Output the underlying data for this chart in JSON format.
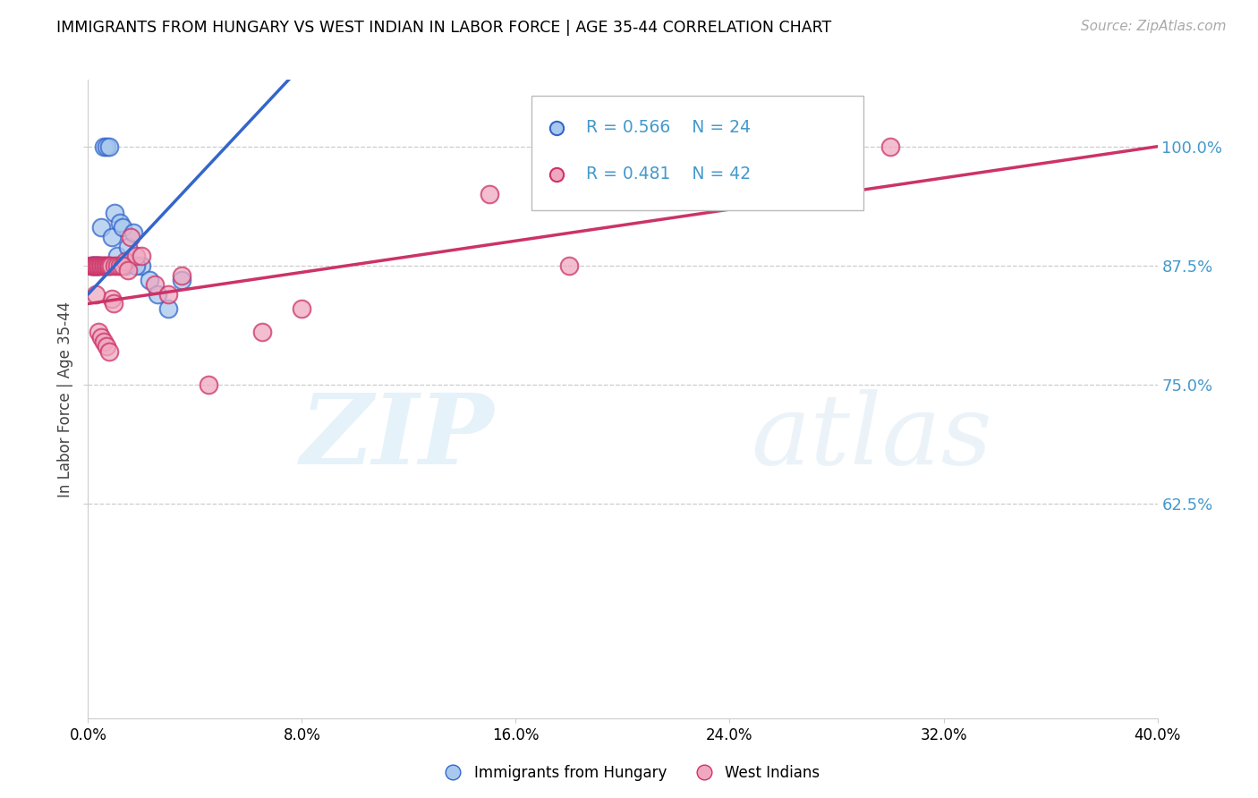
{
  "title": "IMMIGRANTS FROM HUNGARY VS WEST INDIAN IN LABOR FORCE | AGE 35-44 CORRELATION CHART",
  "source": "Source: ZipAtlas.com",
  "ylabel": "In Labor Force | Age 35-44",
  "R_hungary": 0.566,
  "N_hungary": 24,
  "R_westindian": 0.481,
  "N_westindian": 42,
  "legend_labels": [
    "Immigrants from Hungary",
    "West Indians"
  ],
  "hungary_color": "#a8c8ee",
  "hungary_line_color": "#3366cc",
  "westindian_color": "#f0a8c0",
  "westindian_line_color": "#cc3366",
  "axis_tick_color": "#4499cc",
  "hungary_x": [
    0.15,
    0.2,
    0.25,
    0.3,
    0.35,
    0.4,
    0.5,
    0.6,
    0.7,
    0.8,
    0.9,
    1.0,
    1.1,
    1.2,
    1.3,
    1.5,
    1.7,
    2.0,
    2.3,
    2.6,
    3.0,
    3.5,
    1.4,
    1.8
  ],
  "hungary_y": [
    87.5,
    87.5,
    87.5,
    87.5,
    87.5,
    87.5,
    91.5,
    100.0,
    100.0,
    100.0,
    90.5,
    93.0,
    88.5,
    92.0,
    91.5,
    89.5,
    91.0,
    87.5,
    86.0,
    84.5,
    83.0,
    86.0,
    87.5,
    87.5
  ],
  "westindian_x": [
    0.1,
    0.15,
    0.2,
    0.25,
    0.3,
    0.35,
    0.4,
    0.45,
    0.5,
    0.55,
    0.6,
    0.65,
    0.7,
    0.75,
    0.8,
    0.85,
    0.9,
    0.95,
    1.0,
    1.1,
    1.2,
    1.4,
    1.6,
    1.8,
    2.0,
    2.5,
    3.0,
    3.5,
    1.3,
    1.5,
    0.3,
    0.4,
    0.5,
    0.6,
    0.7,
    0.8,
    4.5,
    6.5,
    8.0,
    15.0,
    18.0,
    30.0
  ],
  "westindian_y": [
    87.5,
    87.5,
    87.5,
    87.5,
    87.5,
    87.5,
    87.5,
    87.5,
    87.5,
    87.5,
    87.5,
    87.5,
    87.5,
    87.5,
    87.5,
    87.5,
    84.0,
    83.5,
    87.5,
    87.5,
    87.5,
    88.0,
    90.5,
    88.5,
    88.5,
    85.5,
    84.5,
    86.5,
    87.5,
    87.0,
    84.5,
    80.5,
    80.0,
    79.5,
    79.0,
    78.5,
    75.0,
    80.5,
    83.0,
    95.0,
    87.5,
    100.0
  ],
  "xlim": [
    0.0,
    40.0
  ],
  "ylim": [
    40.0,
    107.0
  ],
  "yticks": [
    62.5,
    75.0,
    87.5,
    100.0
  ],
  "xticks": [
    0.0,
    8.0,
    16.0,
    24.0,
    32.0,
    40.0
  ],
  "hungary_line_x0": 0.0,
  "hungary_line_y0": 84.5,
  "hungary_line_x1": 7.5,
  "hungary_line_y1": 107.0,
  "westindian_line_x0": 0.0,
  "westindian_line_y0": 83.5,
  "westindian_line_x1": 40.0,
  "westindian_line_y1": 100.0,
  "background_color": "#ffffff",
  "grid_color": "#cccccc",
  "spine_color": "#cccccc"
}
